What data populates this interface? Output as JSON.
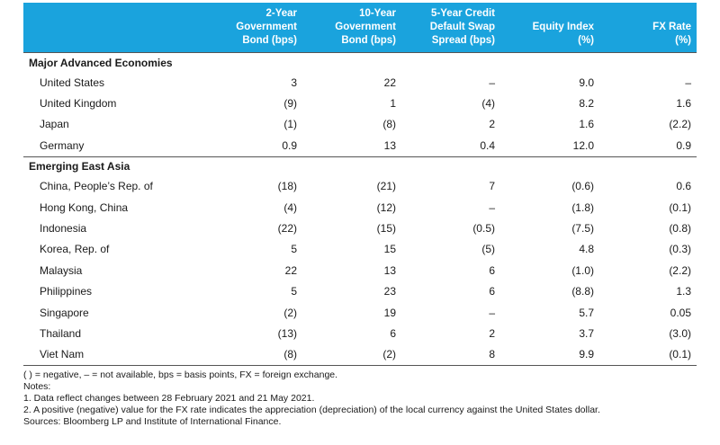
{
  "table": {
    "columns": [
      {
        "l1": "2-Year",
        "l2": "Government",
        "l3": "Bond (bps)"
      },
      {
        "l1": "10-Year",
        "l2": "Government",
        "l3": "Bond (bps)"
      },
      {
        "l1": "5-Year Credit",
        "l2": "Default Swap",
        "l3": "Spread (bps)"
      },
      {
        "l1": "",
        "l2": "Equity Index",
        "l3": "(%)"
      },
      {
        "l1": "",
        "l2": "FX Rate",
        "l3": "(%)"
      }
    ],
    "sections": [
      {
        "title": "Major Advanced Economies",
        "rows": [
          {
            "name": "United States",
            "values": [
              "3",
              "22",
              "–",
              "9.0",
              "–"
            ]
          },
          {
            "name": "United Kingdom",
            "values": [
              "(9)",
              "1",
              "(4)",
              "8.2",
              "1.6"
            ]
          },
          {
            "name": "Japan",
            "values": [
              "(1)",
              "(8)",
              "2",
              "1.6",
              "(2.2)"
            ]
          },
          {
            "name": "Germany",
            "values": [
              "0.9",
              "13",
              "0.4",
              "12.0",
              "0.9"
            ]
          }
        ]
      },
      {
        "title": "Emerging East Asia",
        "rows": [
          {
            "name": "China, People’s Rep. of",
            "values": [
              "(18)",
              "(21)",
              "7",
              "(0.6)",
              "0.6"
            ]
          },
          {
            "name": "Hong Kong, China",
            "values": [
              "(4)",
              "(12)",
              "–",
              "(1.8)",
              "(0.1)"
            ]
          },
          {
            "name": "Indonesia",
            "values": [
              "(22)",
              "(15)",
              "(0.5)",
              "(7.5)",
              "(0.8)"
            ]
          },
          {
            "name": "Korea, Rep. of",
            "values": [
              "5",
              "15",
              "(5)",
              "4.8",
              "(0.3)"
            ]
          },
          {
            "name": "Malaysia",
            "values": [
              "22",
              "13",
              "6",
              "(1.0)",
              "(2.2)"
            ]
          },
          {
            "name": "Philippines",
            "values": [
              "5",
              "23",
              "6",
              "(8.8)",
              "1.3"
            ]
          },
          {
            "name": "Singapore",
            "values": [
              "(2)",
              "19",
              "–",
              "5.7",
              "0.05"
            ]
          },
          {
            "name": "Thailand",
            "values": [
              "(13)",
              "6",
              "2",
              "3.7",
              "(3.0)"
            ]
          },
          {
            "name": "Viet Nam",
            "values": [
              "(8)",
              "(2)",
              "8",
              "9.9",
              "(0.1)"
            ]
          }
        ]
      }
    ]
  },
  "notes": [
    "( ) = negative, – = not available, bps = basis points, FX = foreign exchange.",
    "Notes:",
    "1.  Data reflect changes between 28 February 2021 and 21 May 2021.",
    "2.  A positive (negative) value for the FX rate indicates the appreciation (depreciation) of the local currency against the United States dollar.",
    "Sources: Bloomberg LP and Institute of International Finance."
  ]
}
